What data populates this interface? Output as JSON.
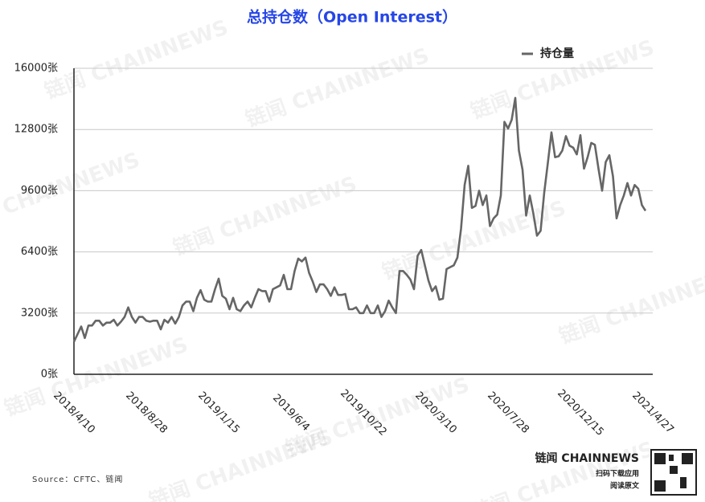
{
  "chart_data": {
    "type": "line",
    "title": "总持仓数（Open Interest）",
    "source": "Source：CFTC、链闻",
    "watermark": "链闻 CHAINNEWS",
    "brand": {
      "name": "链闻 CHAINNEWS",
      "line1": "扫码下载应用",
      "line2": "阅读原文"
    },
    "legend_position": "upper right",
    "grid": true,
    "categories": [
      "2018/4/10",
      null,
      null,
      null,
      null,
      null,
      null,
      null,
      null,
      null,
      null,
      null,
      null,
      null,
      null,
      null,
      null,
      null,
      null,
      null,
      "2018/8/28",
      null,
      null,
      null,
      null,
      null,
      null,
      null,
      null,
      null,
      null,
      null,
      null,
      null,
      null,
      null,
      null,
      null,
      null,
      null,
      "2019/1/15",
      null,
      null,
      null,
      null,
      null,
      null,
      null,
      null,
      null,
      null,
      null,
      null,
      null,
      null,
      null,
      null,
      null,
      null,
      null,
      "2019/6/4",
      null,
      null,
      null,
      null,
      null,
      null,
      null,
      null,
      null,
      null,
      null,
      null,
      null,
      null,
      null,
      null,
      null,
      null,
      null,
      "2019/10/22",
      null,
      null,
      null,
      null,
      null,
      null,
      null,
      null,
      null,
      null,
      null,
      null,
      null,
      null,
      null,
      null,
      null,
      null,
      null,
      "2020/3/10",
      null,
      null,
      null,
      null,
      null,
      null,
      null,
      null,
      null,
      null,
      null,
      null,
      null,
      null,
      null,
      null,
      null,
      null,
      null,
      "2020/7/28",
      null,
      null,
      null,
      null,
      null,
      null,
      null,
      null,
      null,
      null,
      null,
      null,
      null,
      null,
      null,
      null,
      null,
      null,
      null,
      "2020/12/15",
      null,
      null,
      null,
      null,
      null,
      null,
      null,
      null,
      null,
      null,
      null,
      null,
      null,
      null,
      null,
      null,
      null,
      null,
      null,
      "2021/4/27"
    ],
    "series": [
      {
        "name": "持仓量",
        "color": "#666666",
        "values": [
          1700,
          2100,
          2500,
          1900,
          2550,
          2550,
          2800,
          2800,
          2550,
          2700,
          2700,
          2850,
          2550,
          2750,
          3000,
          3500,
          3000,
          2700,
          3000,
          3000,
          2800,
          2750,
          2800,
          2800,
          2350,
          2850,
          2700,
          3000,
          2650,
          3000,
          3600,
          3800,
          3800,
          3300,
          4000,
          4400,
          3900,
          3800,
          3800,
          4450,
          5000,
          4100,
          3950,
          3400,
          4000,
          3400,
          3300,
          3600,
          3800,
          3500,
          4000,
          4450,
          4350,
          4350,
          3800,
          4450,
          4550,
          4650,
          5200,
          4450,
          4450,
          5400,
          6050,
          5900,
          6100,
          5300,
          4850,
          4300,
          4700,
          4700,
          4450,
          4100,
          4550,
          4150,
          4150,
          4200,
          3400,
          3400,
          3500,
          3200,
          3200,
          3600,
          3200,
          3200,
          3600,
          3000,
          3300,
          3850,
          3500,
          3200,
          5400,
          5400,
          5200,
          4950,
          4450,
          6200,
          6500,
          5700,
          4900,
          4350,
          4600,
          3900,
          3950,
          5500,
          5600,
          5700,
          6100,
          7600,
          9900,
          10900,
          8700,
          8800,
          9600,
          8850,
          9350,
          7750,
          8150,
          8350,
          9350,
          13200,
          12850,
          13300,
          14450,
          11700,
          10700,
          8300,
          9350,
          8400,
          7250,
          7500,
          9500,
          11050,
          12650,
          11350,
          11400,
          11700,
          12450,
          11950,
          11850,
          11500,
          12500,
          10750,
          11350,
          12100,
          12000,
          10750,
          9600,
          11100,
          11450,
          10350,
          8150,
          8850,
          9350,
          10000,
          9350,
          9900,
          9700,
          8850,
          8550,
          null,
          null
        ]
      }
    ],
    "ylim": [
      0,
      16000
    ],
    "yticks": [
      {
        "value": 0,
        "label": "0张"
      },
      {
        "value": 3200,
        "label": "3200张"
      },
      {
        "value": 6400,
        "label": "6400张"
      },
      {
        "value": 9600,
        "label": "9600张"
      },
      {
        "value": 12800,
        "label": "12800张"
      },
      {
        "value": 16000,
        "label": "16000张"
      }
    ]
  }
}
